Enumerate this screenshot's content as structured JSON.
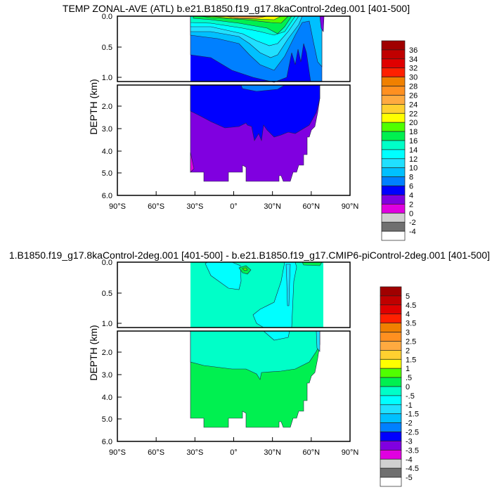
{
  "plots": [
    {
      "title": "TEMP ZONAL-AVE (ATL) b.e21.B1850.f19_g17.8kaControl-2deg.001 [401-500]",
      "ylabel": "DEPTH (km)",
      "colorbar_labels": [
        "36",
        "34",
        "32",
        "30",
        "28",
        "26",
        "24",
        "22",
        "20",
        "18",
        "16",
        "14",
        "12",
        "10",
        "8",
        "6",
        "4",
        "2",
        "0",
        "-2",
        "-4"
      ]
    },
    {
      "title": "1.B1850.f19_g17.8kaControl-2deg.001 [401-500] - b.e21.B1850.f19_g17.CMIP6-piControl-2deg.001 [401-500]",
      "ylabel": "DEPTH (km)",
      "colorbar_labels": [
        "5",
        "4.5",
        "4",
        "3.5",
        "3",
        "2.5",
        "2",
        "1.5",
        "1",
        ".5",
        "0",
        "-.5",
        "-1",
        "-1.5",
        "-2",
        "-2.5",
        "-3",
        "-3.5",
        "-4",
        "-4.5",
        "-5"
      ]
    }
  ],
  "xticks": [
    "90°S",
    "60°S",
    "30°S",
    "0°",
    "30°N",
    "60°N",
    "90°N"
  ],
  "yticks_upper": [
    "0.0",
    "0.5",
    "1.0"
  ],
  "yticks_lower": [
    "2.0",
    "3.0",
    "4.0",
    "5.0",
    "6.0"
  ],
  "colorbar_colors": [
    "#a00000",
    "#c00000",
    "#e00000",
    "#ff2000",
    "#f08000",
    "#ff9020",
    "#ffaa40",
    "#ffd030",
    "#ffff00",
    "#50ff00",
    "#00f050",
    "#00ffc8",
    "#00ffff",
    "#20e0ff",
    "#00c0ff",
    "#0080ff",
    "#0000ff",
    "#8000e0",
    "#e000e0",
    "#d0d0d0",
    "#707070",
    "#ffffff"
  ],
  "chart_data": [
    {
      "type": "heatmap",
      "title": "TEMP ZONAL-AVE (ATL) b.e21.B1850.f19_g17.8kaControl-2deg.001 [401-500]",
      "xlabel": "",
      "ylabel": "DEPTH (km)",
      "xlim": [
        -90,
        90
      ],
      "ylim": [
        6.0,
        0.0
      ],
      "levels": [
        -4,
        -2,
        0,
        2,
        4,
        6,
        8,
        10,
        12,
        14,
        16,
        18,
        20,
        22,
        24,
        26,
        28,
        30,
        32,
        34,
        36
      ],
      "data_lat_range": [
        -34,
        66
      ]
    },
    {
      "type": "heatmap",
      "title": "1.B1850.f19_g17.8kaControl-2deg.001 [401-500] - b.e21.B1850.f19_g17.CMIP6-piControl-2deg.001 [401-500]",
      "xlabel": "",
      "ylabel": "DEPTH (km)",
      "xlim": [
        -90,
        90
      ],
      "ylim": [
        6.0,
        0.0
      ],
      "levels": [
        -5,
        -4.5,
        -4,
        -3.5,
        -3,
        -2.5,
        -2,
        -1.5,
        -1,
        -0.5,
        0,
        0.5,
        1,
        1.5,
        2,
        2.5,
        3,
        3.5,
        4,
        4.5,
        5
      ],
      "data_lat_range": [
        -34,
        66
      ]
    }
  ]
}
